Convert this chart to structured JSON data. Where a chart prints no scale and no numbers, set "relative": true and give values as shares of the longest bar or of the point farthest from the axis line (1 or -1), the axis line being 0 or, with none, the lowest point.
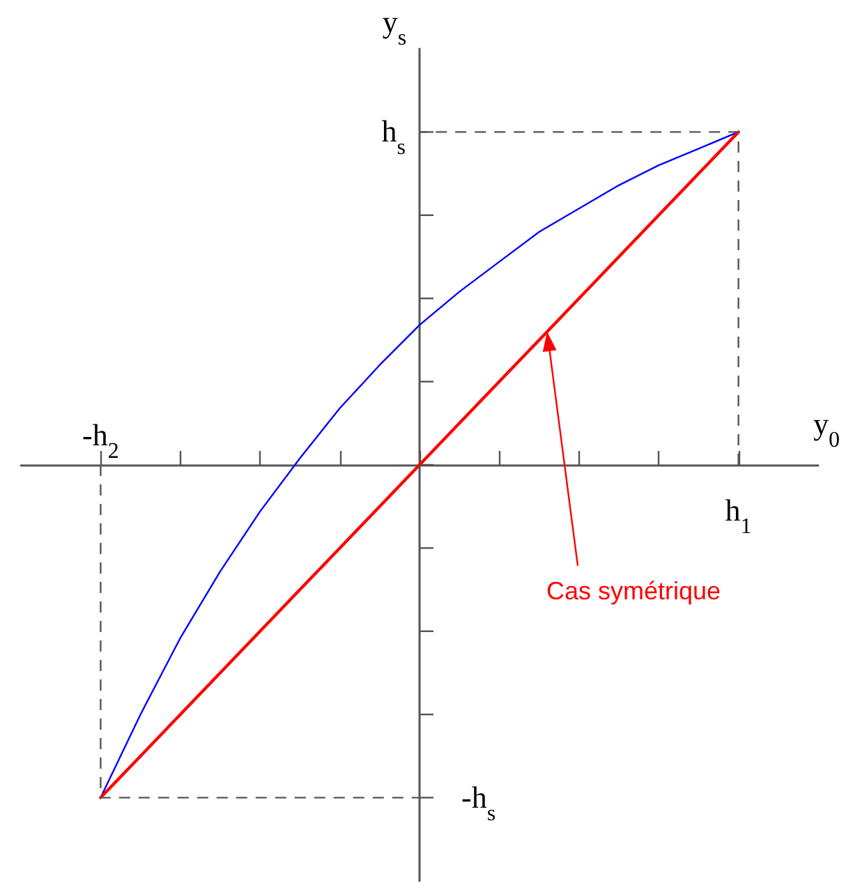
{
  "chart_data": {
    "type": "line",
    "relative": true,
    "xlabel": "y$_{0}$",
    "ylabel": "y$_{s}$",
    "categories": [
      null,
      null,
      null,
      null,
      null,
      null,
      null,
      null,
      null,
      null,
      null,
      null,
      null,
      null,
      null,
      null,
      null,
      null,
      null,
      null,
      null
    ],
    "series": [
      {
        "color": "#0000ff",
        "values": [
          null,
          null,
          -1,
          -0.75,
          -0.52,
          -0.32,
          -0.14,
          0.02,
          0.17,
          0.3,
          0.42,
          0.52,
          0.61,
          0.7,
          0.77,
          0.84,
          0.9,
          0.95,
          1,
          null,
          null
        ]
      },
      {
        "color": "#ff0000",
        "values": [
          null,
          null,
          -1,
          -0.875,
          -0.75,
          -0.625,
          -0.5,
          -0.375,
          -0.25,
          -0.125,
          0,
          0.125,
          0.25,
          0.375,
          0.5,
          0.625,
          0.75,
          0.875,
          1,
          null,
          null
        ]
      }
    ],
    "annotations": [
      "-h$_{2}$",
      "h$_{1}$",
      "h$_{s}$",
      "-h$_{s}$",
      "Cas symétrique"
    ]
  }
}
